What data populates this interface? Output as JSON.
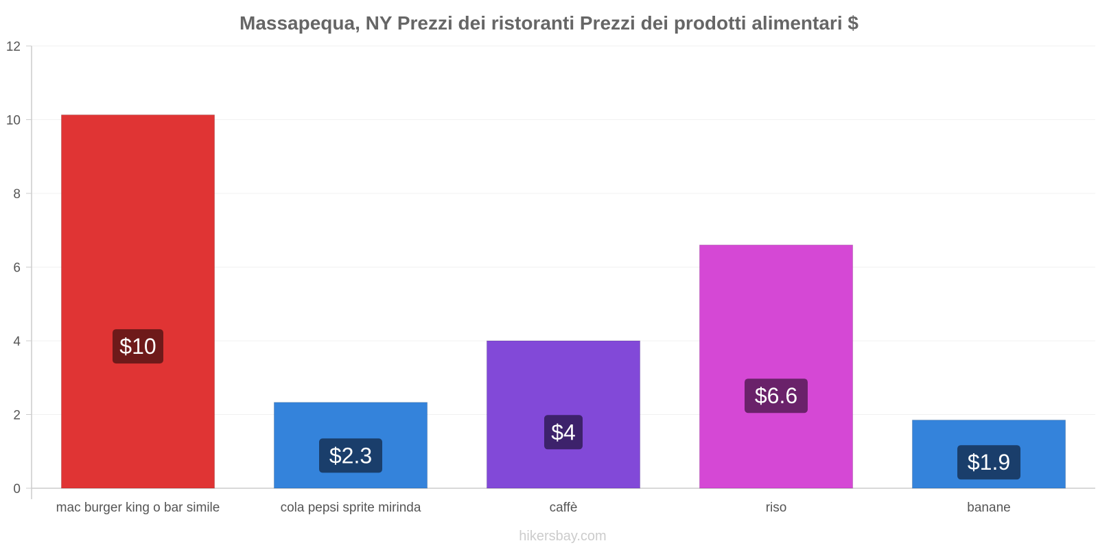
{
  "chart_data": {
    "type": "bar",
    "title": "Massapequa, NY Prezzi dei ristoranti Prezzi dei prodotti alimentari $",
    "xlabel": "",
    "ylabel": "",
    "categories": [
      "mac burger king o bar simile",
      "cola pepsi sprite mirinda",
      "caffè",
      "riso",
      "banane"
    ],
    "values": [
      10.13,
      2.33,
      4.0,
      6.6,
      1.85
    ],
    "data_labels": [
      "$10",
      "$2.3",
      "$4",
      "$6.6",
      "$1.9"
    ],
    "bar_colors": [
      "#e03434",
      "#3483db",
      "#8249d8",
      "#d548d5",
      "#3483db"
    ],
    "label_bg_colors": [
      "#6e1a1a",
      "#1a3e6b",
      "#3d226b",
      "#6a226a",
      "#1a3e6b"
    ],
    "ylim": [
      0,
      12
    ],
    "yticks": [
      0,
      2,
      4,
      6,
      8,
      10,
      12
    ],
    "grid": true,
    "legend": "none"
  },
  "watermark": "hikersbay.com"
}
